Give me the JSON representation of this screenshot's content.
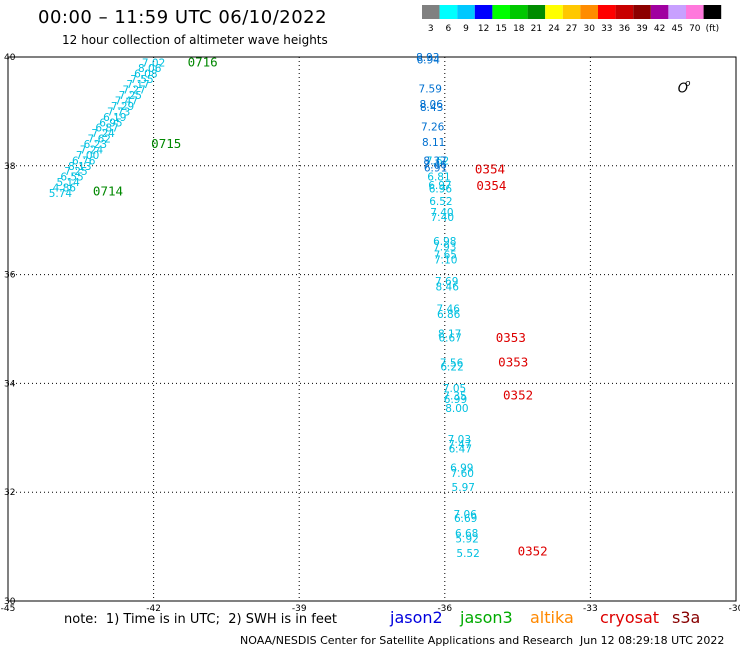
{
  "header": {
    "title": "00:00 – 11:59 UTC 06/10/2022",
    "subtitle": "12 hour collection of altimeter wave heights"
  },
  "legend": {
    "bins": [
      {
        "label": "3",
        "color": "#808080"
      },
      {
        "label": "6",
        "color": "#00ffff"
      },
      {
        "label": "9",
        "color": "#00c8ff"
      },
      {
        "label": "12",
        "color": "#0000ff"
      },
      {
        "label": "15",
        "color": "#00ff00"
      },
      {
        "label": "18",
        "color": "#00c800"
      },
      {
        "label": "21",
        "color": "#008c00"
      },
      {
        "label": "24",
        "color": "#ffff00"
      },
      {
        "label": "27",
        "color": "#ffc800"
      },
      {
        "label": "30",
        "color": "#ff8c00"
      },
      {
        "label": "33",
        "color": "#ff0000"
      },
      {
        "label": "36",
        "color": "#c80000"
      },
      {
        "label": "39",
        "color": "#8c0000"
      },
      {
        "label": "42",
        "color": "#a000a0"
      },
      {
        "label": "45",
        "color": "#c8a0ff"
      },
      {
        "label": "70",
        "color": "#ff78dc"
      },
      {
        "label": "(ft)",
        "color": "#000000"
      }
    ]
  },
  "map": {
    "lon_range": [
      -45,
      -30
    ],
    "lat_range": [
      30,
      40
    ],
    "lon_ticks": [
      {
        "value": -45,
        "label": "-45"
      },
      {
        "value": -42,
        "label": "-42"
      },
      {
        "value": -39,
        "label": "-39"
      },
      {
        "value": -36,
        "label": "-36"
      },
      {
        "value": -33,
        "label": "-33"
      },
      {
        "value": -30,
        "label": "-30"
      }
    ],
    "lat_ticks": [
      {
        "value": 40,
        "label": "40"
      },
      {
        "value": 38,
        "label": "38"
      },
      {
        "value": 36,
        "label": "36"
      },
      {
        "value": 34,
        "label": "34"
      },
      {
        "value": 32,
        "label": "32"
      },
      {
        "value": 30,
        "label": "30"
      }
    ],
    "grid": true,
    "island_marks": [
      {
        "lon": -31.05,
        "lat": 39.47,
        "glyph": "o"
      },
      {
        "lon": -31.2,
        "lat": 39.35,
        "glyph": "O"
      }
    ],
    "track_colors": {
      "jason3": "#00c0e0",
      "s3a": "#0070d0"
    },
    "time_colors": {
      "jason3": "#008800",
      "cryosat": "#dd0000"
    },
    "tracks": [
      {
        "satellite": "jason3",
        "points": [
          {
            "lon": -42.0,
            "lat": 39.9,
            "swh": "7.02"
          },
          {
            "lon": -42.08,
            "lat": 39.8,
            "swh": "8.06"
          },
          {
            "lon": -42.16,
            "lat": 39.7,
            "swh": "6.08"
          },
          {
            "lon": -42.24,
            "lat": 39.6,
            "swh": "7.55"
          },
          {
            "lon": -42.32,
            "lat": 39.5,
            "swh": "7.17"
          },
          {
            "lon": -42.4,
            "lat": 39.4,
            "swh": "7.27"
          },
          {
            "lon": -42.48,
            "lat": 39.3,
            "swh": "7.25"
          },
          {
            "lon": -42.56,
            "lat": 39.2,
            "swh": "7.47"
          },
          {
            "lon": -42.64,
            "lat": 39.1,
            "swh": "7.29"
          },
          {
            "lon": -42.72,
            "lat": 39.0,
            "swh": "7.73"
          },
          {
            "lon": -42.8,
            "lat": 38.9,
            "swh": "6.19"
          },
          {
            "lon": -42.88,
            "lat": 38.8,
            "swh": "6.95"
          },
          {
            "lon": -42.96,
            "lat": 38.7,
            "swh": "6.87"
          },
          {
            "lon": -43.04,
            "lat": 38.6,
            "swh": "7.24"
          },
          {
            "lon": -43.12,
            "lat": 38.5,
            "swh": "7.62"
          },
          {
            "lon": -43.2,
            "lat": 38.4,
            "swh": "6.23"
          },
          {
            "lon": -43.28,
            "lat": 38.3,
            "swh": "7.24"
          },
          {
            "lon": -43.36,
            "lat": 38.2,
            "swh": "7.00"
          },
          {
            "lon": -43.44,
            "lat": 38.1,
            "swh": "6.76"
          },
          {
            "lon": -43.52,
            "lat": 38.0,
            "swh": "8.13"
          },
          {
            "lon": -43.6,
            "lat": 37.9,
            "swh": "7.25"
          },
          {
            "lon": -43.68,
            "lat": 37.8,
            "swh": "6.55"
          },
          {
            "lon": -43.76,
            "lat": 37.7,
            "swh": "5.14"
          },
          {
            "lon": -43.84,
            "lat": 37.6,
            "swh": "4.86"
          },
          {
            "lon": -43.92,
            "lat": 37.5,
            "swh": "5.74"
          }
        ]
      },
      {
        "satellite": "jason3",
        "points": [
          {
            "lon": -36.15,
            "lat": 38.1,
            "swh": "7.62"
          },
          {
            "lon": -36.12,
            "lat": 37.8,
            "swh": "6.81"
          },
          {
            "lon": -36.1,
            "lat": 37.65,
            "swh": "6.97"
          },
          {
            "lon": -36.09,
            "lat": 37.58,
            "swh": "6.96"
          },
          {
            "lon": -36.08,
            "lat": 37.35,
            "swh": "6.52"
          },
          {
            "lon": -36.06,
            "lat": 37.15,
            "swh": "7.40"
          },
          {
            "lon": -36.05,
            "lat": 37.06,
            "swh": "7.40"
          },
          {
            "lon": -36.0,
            "lat": 36.62,
            "swh": "6.98"
          },
          {
            "lon": -36.0,
            "lat": 36.52,
            "swh": "7.93"
          },
          {
            "lon": -35.99,
            "lat": 36.37,
            "swh": "7.65"
          },
          {
            "lon": -35.98,
            "lat": 36.28,
            "swh": "7.10"
          },
          {
            "lon": -35.96,
            "lat": 35.88,
            "swh": "7.69"
          },
          {
            "lon": -35.95,
            "lat": 35.78,
            "swh": "8.46"
          },
          {
            "lon": -35.93,
            "lat": 35.38,
            "swh": "7.46"
          },
          {
            "lon": -35.92,
            "lat": 35.28,
            "swh": "6.86"
          },
          {
            "lon": -35.9,
            "lat": 34.92,
            "swh": "8.17"
          },
          {
            "lon": -35.89,
            "lat": 34.84,
            "swh": "6.67"
          },
          {
            "lon": -35.86,
            "lat": 34.38,
            "swh": "7.56"
          },
          {
            "lon": -35.85,
            "lat": 34.31,
            "swh": "6.22"
          },
          {
            "lon": -35.8,
            "lat": 33.92,
            "swh": "7.05"
          },
          {
            "lon": -35.79,
            "lat": 33.78,
            "swh": "7.35"
          },
          {
            "lon": -35.78,
            "lat": 33.71,
            "swh": "6.99"
          },
          {
            "lon": -35.75,
            "lat": 33.55,
            "swh": "8.00"
          },
          {
            "lon": -35.7,
            "lat": 32.98,
            "swh": "7.03"
          },
          {
            "lon": -35.69,
            "lat": 32.89,
            "swh": "7.47"
          },
          {
            "lon": -35.68,
            "lat": 32.8,
            "swh": "6.47"
          },
          {
            "lon": -35.65,
            "lat": 32.45,
            "swh": "6.99"
          },
          {
            "lon": -35.64,
            "lat": 32.35,
            "swh": "7.60"
          },
          {
            "lon": -35.62,
            "lat": 32.1,
            "swh": "5.97"
          },
          {
            "lon": -35.58,
            "lat": 31.6,
            "swh": "7.06"
          },
          {
            "lon": -35.57,
            "lat": 31.53,
            "swh": "6.69"
          },
          {
            "lon": -35.55,
            "lat": 31.25,
            "swh": "6.68"
          },
          {
            "lon": -35.54,
            "lat": 31.15,
            "swh": "5.92"
          },
          {
            "lon": -35.52,
            "lat": 30.88,
            "swh": "5.52"
          }
        ]
      },
      {
        "satellite": "s3a",
        "points": [
          {
            "lon": -36.35,
            "lat": 40.0,
            "swh": "8.93"
          },
          {
            "lon": -36.34,
            "lat": 39.95,
            "swh": "6.94"
          },
          {
            "lon": -36.3,
            "lat": 39.42,
            "swh": "7.59"
          },
          {
            "lon": -36.28,
            "lat": 39.14,
            "swh": "8.06"
          },
          {
            "lon": -36.27,
            "lat": 39.08,
            "swh": "8.43"
          },
          {
            "lon": -36.25,
            "lat": 38.72,
            "swh": "7.26"
          },
          {
            "lon": -36.23,
            "lat": 38.44,
            "swh": "8.11"
          },
          {
            "lon": -36.2,
            "lat": 38.1,
            "swh": "8.37"
          },
          {
            "lon": -36.2,
            "lat": 38.02,
            "swh": "7.46"
          },
          {
            "lon": -36.19,
            "lat": 37.97,
            "swh": "6.91"
          }
        ]
      }
    ],
    "time_labels": [
      {
        "lon": -41.3,
        "lat": 39.92,
        "text": "0716",
        "sat": "jason3"
      },
      {
        "lon": -42.05,
        "lat": 38.42,
        "text": "0715",
        "sat": "jason3"
      },
      {
        "lon": -43.25,
        "lat": 37.55,
        "text": "0714",
        "sat": "jason3"
      },
      {
        "lon": -35.38,
        "lat": 37.95,
        "text": "0354",
        "sat": "cryosat"
      },
      {
        "lon": -35.35,
        "lat": 37.65,
        "text": "0354",
        "sat": "cryosat"
      },
      {
        "lon": -34.95,
        "lat": 34.85,
        "text": "0353",
        "sat": "cryosat"
      },
      {
        "lon": -34.9,
        "lat": 34.4,
        "text": "0353",
        "sat": "cryosat"
      },
      {
        "lon": -34.8,
        "lat": 33.8,
        "text": "0352",
        "sat": "cryosat"
      },
      {
        "lon": -34.5,
        "lat": 30.93,
        "text": "0352",
        "sat": "cryosat"
      }
    ]
  },
  "footer": {
    "note": "note:  1) Time is in UTC;  2) SWH is in feet",
    "satellites": [
      {
        "name": "jason2",
        "color": "#0000dd"
      },
      {
        "name": "jason3",
        "color": "#00aa00"
      },
      {
        "name": "altika",
        "color": "#ff8800"
      },
      {
        "name": "cryosat",
        "color": "#dd0000"
      },
      {
        "name": "s3a",
        "color": "#880000"
      }
    ],
    "credit": "NOAA/NESDIS Center for Satellite Applications and Research",
    "timestamp": "Jun 12 08:29:18 UTC 2022"
  }
}
